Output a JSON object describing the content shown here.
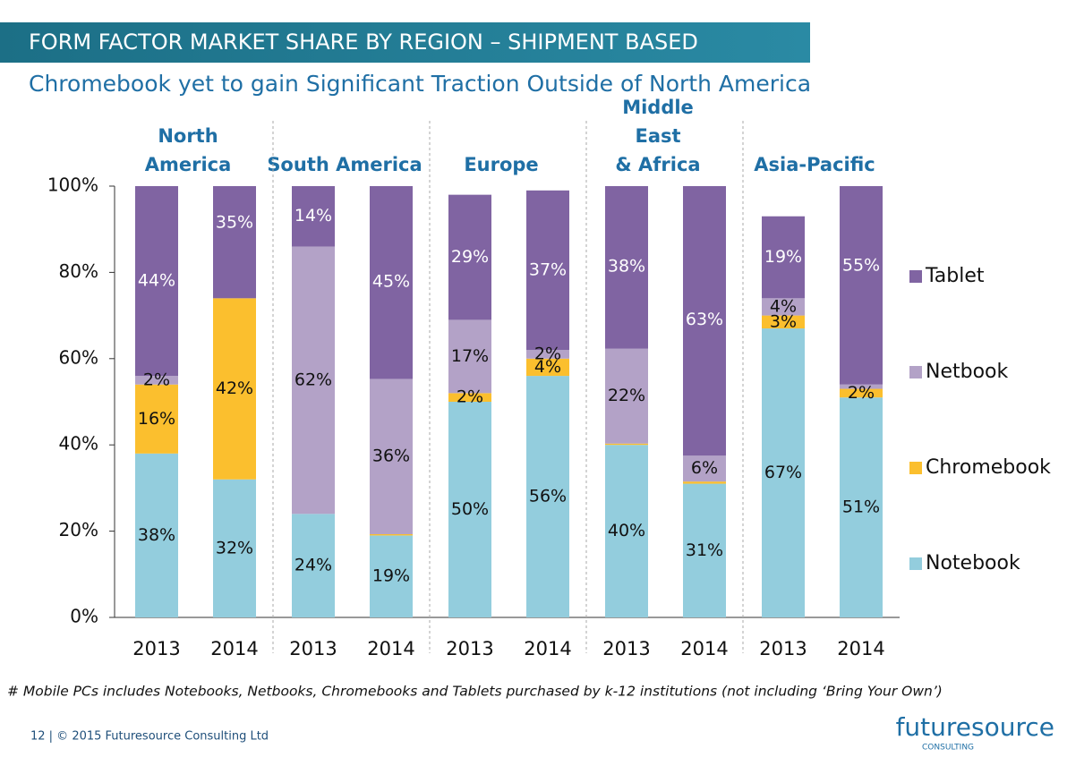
{
  "chart_data": {
    "type": "bar",
    "stacked": true,
    "title": "FORM FACTOR MARKET SHARE BY REGION – SHIPMENT BASED",
    "subtitle": "Chromebook yet to gain Significant Traction Outside of North America",
    "groups": [
      [
        "North",
        "America"
      ],
      [
        "South America"
      ],
      [
        "Europe"
      ],
      [
        "Middle",
        "East",
        "& Africa"
      ],
      [
        "Asia-Pacific"
      ]
    ],
    "categories": [
      "2013",
      "2014",
      "2013",
      "2014",
      "2013",
      "2014",
      "2013",
      "2014",
      "2013",
      "2014"
    ],
    "series": [
      {
        "name": "Notebook",
        "color": "#93cddd",
        "values": [
          38,
          32,
          24,
          19,
          50,
          56,
          40,
          31,
          67,
          51
        ],
        "value_labels": [
          "38%",
          "32%",
          "24%",
          "19%",
          "50%",
          "56%",
          "40%",
          "31%",
          "67%",
          "51%"
        ]
      },
      {
        "name": "Chromebook",
        "color": "#fbbf2e",
        "values": [
          16,
          42,
          null,
          0.3,
          2,
          4,
          0.3,
          0.5,
          3,
          2
        ],
        "value_labels": [
          "16%",
          "42%",
          null,
          null,
          "2%",
          "4%",
          null,
          null,
          "3%",
          "2%"
        ]
      },
      {
        "name": "Netbook",
        "color": "#b3a2c7",
        "values": [
          2,
          null,
          62,
          36,
          17,
          2,
          22,
          6,
          4,
          1
        ],
        "value_labels": [
          "2%",
          null,
          "62%",
          "36%",
          "17%",
          "2%",
          "22%",
          "6%",
          "4%",
          null
        ]
      },
      {
        "name": "Tablet",
        "color": "#8064a2",
        "values": [
          44,
          35,
          14,
          45,
          29,
          37,
          38,
          63,
          19,
          55
        ],
        "value_labels": [
          "44%",
          "35%",
          "14%",
          "45%",
          "29%",
          "37%",
          "38%",
          "63%",
          "19%",
          "55%"
        ]
      }
    ],
    "ylim": [
      0,
      100
    ],
    "yticks": [
      {
        "value": 0,
        "label": "0%"
      },
      {
        "value": 20,
        "label": "20%"
      },
      {
        "value": 40,
        "label": "40%"
      },
      {
        "value": 60,
        "label": "60%"
      },
      {
        "value": 80,
        "label": "80%"
      },
      {
        "value": 100,
        "label": "100%"
      }
    ],
    "legend": "right"
  },
  "footer": {
    "note": "# Mobile PCs includes Notebooks, Netbooks, Chromebooks and Tablets purchased by k-12 institutions (not including ‘Bring Your Own’)",
    "page_line": "12  |  © 2015 Futuresource Consulting Ltd",
    "logo": "futuresource",
    "logo_sub": "CONSULTING"
  }
}
